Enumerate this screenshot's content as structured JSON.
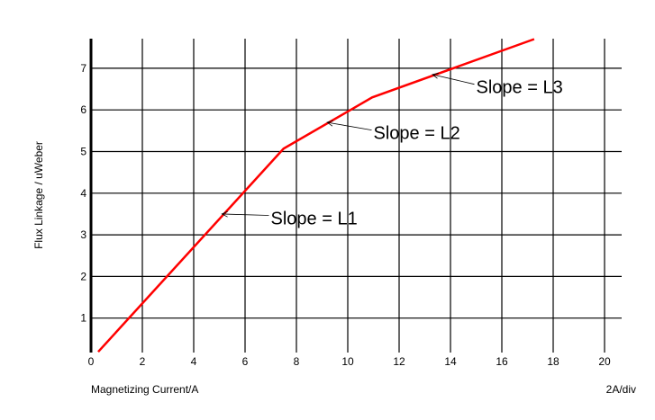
{
  "chart_data": {
    "type": "line",
    "xlabel": "Magnetizing Current/A",
    "ylabel": "Flux Linkage / uWeber",
    "scale_note": "2A/div",
    "xlim": [
      0,
      20.67
    ],
    "ylim": [
      0,
      7.7
    ],
    "x_ticks": [
      "0",
      "2",
      "4",
      "6",
      "8",
      "10",
      "12",
      "14",
      "16",
      "18",
      "20"
    ],
    "y_ticks": [
      "1",
      "2",
      "3",
      "4",
      "5",
      "6",
      "7"
    ],
    "grid": true,
    "series": [
      {
        "color": "#ff0000",
        "x": [
          0.28,
          7.5,
          10.95,
          17.26
        ],
        "y": [
          0.19,
          5.07,
          6.3,
          7.7
        ]
      }
    ],
    "annotations": [
      {
        "text": "Slope = L1",
        "point": [
          5.1,
          3.5
        ],
        "text_at": [
          7.0,
          3.25
        ]
      },
      {
        "text": "Slope = L2",
        "point": [
          9.2,
          5.7
        ],
        "text_at": [
          11.0,
          5.3
        ]
      },
      {
        "text": "Slope = L3",
        "point": [
          13.3,
          6.85
        ],
        "text_at": [
          15.0,
          6.4
        ]
      }
    ]
  }
}
